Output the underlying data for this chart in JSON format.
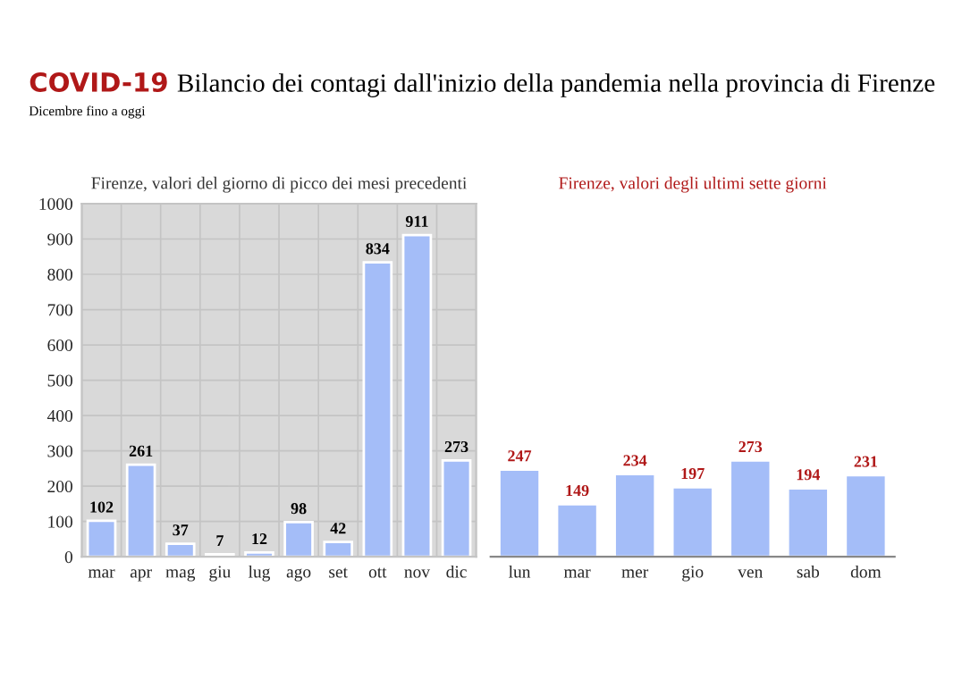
{
  "chart_data": [
    {
      "type": "bar",
      "title": "Firenze, valori del giorno di picco dei mesi precedenti",
      "annotations": [
        "COVID-19 Bilancio dei contagi dall'inizio della pandemia nella provincia di Firenze",
        "Dicembre fino a oggi"
      ],
      "categories": [
        "mar",
        "apr",
        "mag",
        "giu",
        "lug",
        "ago",
        "set",
        "ott",
        "nov",
        "dic"
      ],
      "values": [
        102,
        261,
        37,
        7,
        12,
        98,
        42,
        834,
        911,
        273
      ],
      "color": "#a4bdf8",
      "ylim": [
        0,
        1000
      ],
      "yticks": [
        0,
        100,
        200,
        300,
        400,
        500,
        600,
        700,
        800,
        900,
        1000
      ],
      "grid": true,
      "data_labels": true
    },
    {
      "type": "bar",
      "title": "Firenze, valori degli ultimi sette giorni",
      "categories": [
        "lun",
        "mar",
        "mer",
        "gio",
        "ven",
        "sab",
        "dom"
      ],
      "values": [
        247,
        149,
        234,
        197,
        273,
        194,
        231
      ],
      "color": "#a4bdf8",
      "ylim": [
        0,
        1000
      ],
      "tick_labels": "x",
      "grid": false,
      "data_labels": true
    }
  ]
}
